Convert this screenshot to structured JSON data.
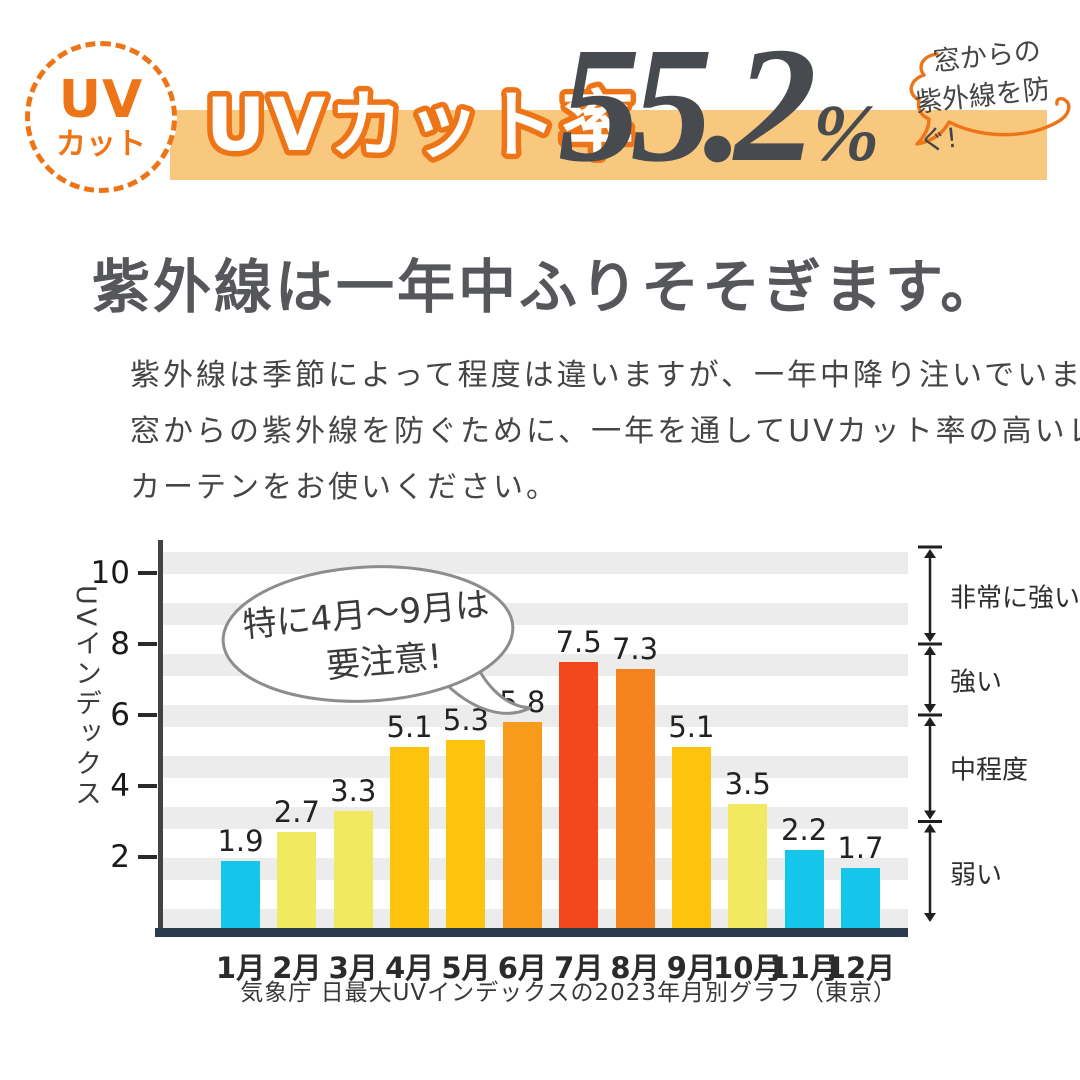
{
  "badge": {
    "top": "UV",
    "bottom": "カット"
  },
  "header": {
    "banner_title": "UVカット率",
    "value": "55.2",
    "percent": "%",
    "bubble": {
      "line1": "窓からの",
      "line2": "紫外線を防ぐ!"
    }
  },
  "headline": "紫外線は一年中ふりそそぎます。",
  "paragraph": {
    "line1": "紫外線は季節によって程度は違いますが、一年中降り注いでいます。",
    "line2": "窓からの紫外線を防ぐために、一年を通してUVカット率の高いレース",
    "line3": "カーテンをお使いください。"
  },
  "chart_data": {
    "type": "bar",
    "title": "",
    "categories": [
      "1月",
      "2月",
      "3月",
      "4月",
      "5月",
      "6月",
      "7月",
      "8月",
      "9月",
      "10月",
      "11月",
      "12月"
    ],
    "values": [
      1.9,
      2.7,
      3.3,
      5.1,
      5.3,
      5.8,
      7.5,
      7.3,
      5.1,
      3.5,
      2.2,
      1.7
    ],
    "bar_colors": [
      "#16c5ea",
      "#f1e960",
      "#f1e960",
      "#fec40d",
      "#fec40d",
      "#f89b1d",
      "#f5471d",
      "#f5831e",
      "#fec40d",
      "#f1e960",
      "#16c5ea",
      "#16c5ea"
    ],
    "xlabel": "",
    "ylabel": "UVインデックス",
    "yticks": [
      2,
      4,
      6,
      8,
      10
    ],
    "ylim": [
      0,
      10.7
    ],
    "grid": "decorative horizontal stripes",
    "legend_position": "none",
    "annotation": {
      "line1": "特に4月〜9月は",
      "line2": "要注意!"
    },
    "level_bands": [
      {
        "label": "非常に強い",
        "from": 8,
        "to": 10.7
      },
      {
        "label": "強い",
        "from": 6,
        "to": 8
      },
      {
        "label": "中程度",
        "from": 3,
        "to": 6
      },
      {
        "label": "弱い",
        "from": 0,
        "to": 3
      }
    ],
    "caption": "気象庁 日最大UVインデックスの2023年月別グラフ（東京）"
  },
  "colors": {
    "accent_orange": "#ee7517",
    "banner": "#f8c87e",
    "big_number": "#474b50",
    "axis_navy": "#2c3a4d",
    "stripe_gray": "#ececec",
    "annotation_outline": "#8d8d8d"
  }
}
